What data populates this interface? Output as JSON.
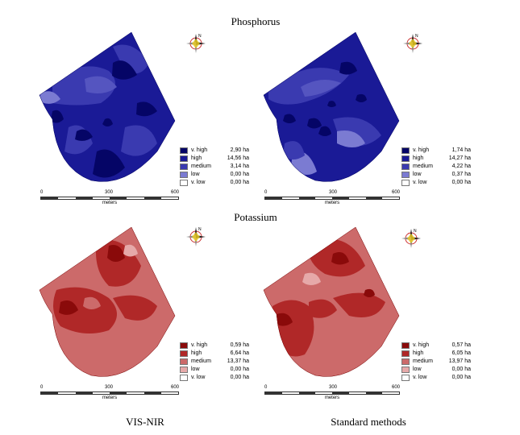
{
  "titles": {
    "phosphorus": "Phosphorus",
    "potassium": "Potassium"
  },
  "columns": {
    "left": "VIS-NIR",
    "right": "Standard methods"
  },
  "compass": {
    "north_label": "N"
  },
  "scale": {
    "ticks": [
      "0",
      "300",
      "600"
    ],
    "unit": "meters"
  },
  "colors": {
    "phosphorus": {
      "v_high": "#050566",
      "high": "#1a1a96",
      "medium": "#3a3ab0",
      "low": "#7b7bd2",
      "v_low": "#ffffff"
    },
    "potassium": {
      "v_high": "#8a0a0a",
      "high": "#b02828",
      "medium": "#cc6a6a",
      "low": "#e6a9a9",
      "v_low": "#ffffff"
    }
  },
  "maps": {
    "p_visnir": {
      "legend": [
        {
          "label": "v. high",
          "value": "2,90 ha"
        },
        {
          "label": "high",
          "value": "14,56 ha"
        },
        {
          "label": "medium",
          "value": "3,14 ha"
        },
        {
          "label": "low",
          "value": "0,00 ha"
        },
        {
          "label": "v. low",
          "value": "0,00 ha"
        }
      ]
    },
    "p_standard": {
      "legend": [
        {
          "label": "v. high",
          "value": "1,74 ha"
        },
        {
          "label": "high",
          "value": "14,27 ha"
        },
        {
          "label": "medium",
          "value": "4,22 ha"
        },
        {
          "label": "low",
          "value": "0,37 ha"
        },
        {
          "label": "v. low",
          "value": "0,00 ha"
        }
      ]
    },
    "k_visnir": {
      "legend": [
        {
          "label": "v. high",
          "value": "0,59 ha"
        },
        {
          "label": "high",
          "value": "6,64 ha"
        },
        {
          "label": "medium",
          "value": "13,37 ha"
        },
        {
          "label": "low",
          "value": "0,00 ha"
        },
        {
          "label": "v. low",
          "value": "0,00 ha"
        }
      ]
    },
    "k_standard": {
      "legend": [
        {
          "label": "v. high",
          "value": "0,57 ha"
        },
        {
          "label": "high",
          "value": "6,05 ha"
        },
        {
          "label": "medium",
          "value": "13,97 ha"
        },
        {
          "label": "low",
          "value": "0,00 ha"
        },
        {
          "label": "v. low",
          "value": "0,00 ha"
        }
      ]
    }
  }
}
